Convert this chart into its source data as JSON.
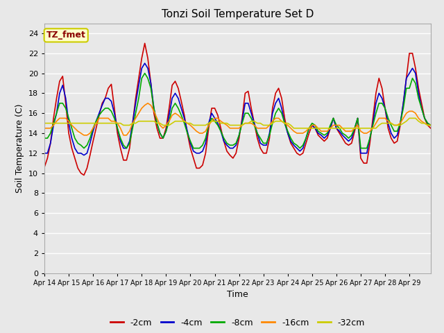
{
  "title": "Tonzi Soil Temperature Set D",
  "xlabel": "Time",
  "ylabel": "Soil Temperature (C)",
  "annotation_text": "TZ_fmet",
  "annotation_color": "#8B0000",
  "annotation_bg": "#FFFFCC",
  "annotation_border": "#CCCC00",
  "ylim": [
    0,
    25
  ],
  "yticks": [
    0,
    2,
    4,
    6,
    8,
    10,
    12,
    14,
    16,
    18,
    20,
    22,
    24
  ],
  "background_color": "#E8E8E8",
  "plot_bg_color": "#E8E8E8",
  "grid_color": "#FFFFFF",
  "series_labels": [
    "-2cm",
    "-4cm",
    "-8cm",
    "-16cm",
    "-32cm"
  ],
  "series_colors": [
    "#CC0000",
    "#0000CC",
    "#00AA00",
    "#FF8800",
    "#CCCC00"
  ],
  "line_width": 1.2,
  "x_tick_labels": [
    "Apr 14",
    "Apr 15",
    "Apr 16",
    "Apr 17",
    "Apr 18",
    "Apr 19",
    "Apr 20",
    "Apr 21",
    "Apr 22",
    "Apr 23",
    "Apr 24",
    "Apr 25",
    "Apr 26",
    "Apr 27",
    "Apr 28",
    "Apr 29"
  ],
  "n_points_per_day": 8,
  "series_data": {
    "-2cm": [
      10.6,
      11.5,
      13.0,
      15.5,
      17.5,
      19.2,
      19.7,
      17.0,
      14.0,
      12.5,
      11.5,
      10.5,
      10.0,
      9.8,
      10.5,
      11.8,
      13.2,
      14.5,
      15.8,
      17.0,
      17.5,
      18.5,
      18.9,
      16.5,
      14.0,
      12.5,
      11.3,
      11.3,
      12.5,
      15.0,
      17.5,
      19.5,
      21.5,
      23.0,
      21.5,
      19.0,
      16.0,
      14.5,
      13.5,
      13.5,
      14.5,
      16.5,
      18.8,
      19.2,
      18.5,
      17.2,
      15.8,
      14.0,
      12.5,
      11.5,
      10.5,
      10.5,
      10.8,
      12.0,
      14.5,
      16.5,
      16.5,
      15.8,
      14.5,
      13.2,
      12.2,
      11.8,
      11.5,
      12.0,
      13.5,
      15.5,
      18.0,
      18.2,
      16.5,
      15.0,
      13.5,
      12.5,
      12.0,
      12.0,
      13.5,
      16.5,
      18.0,
      18.5,
      17.5,
      15.5,
      14.0,
      13.0,
      12.5,
      12.0,
      11.8,
      12.0,
      13.0,
      14.0,
      14.8,
      14.5,
      13.8,
      13.5,
      13.2,
      13.5,
      14.5,
      15.5,
      14.5,
      14.0,
      13.5,
      13.0,
      12.8,
      13.0,
      14.2,
      15.5,
      11.5,
      11.0,
      11.0,
      13.0,
      15.5,
      18.0,
      19.5,
      18.5,
      16.5,
      14.5,
      13.5,
      13.0,
      13.2,
      14.8,
      17.0,
      19.5,
      22.0,
      22.0,
      20.5,
      18.5,
      17.0,
      15.5,
      14.8,
      14.5
    ],
    "-4cm": [
      12.0,
      12.0,
      13.0,
      14.8,
      16.0,
      18.0,
      18.8,
      17.5,
      15.0,
      13.5,
      12.5,
      12.0,
      12.0,
      11.8,
      12.0,
      13.0,
      14.2,
      15.2,
      16.0,
      16.8,
      17.5,
      17.5,
      17.2,
      16.0,
      14.5,
      13.2,
      12.5,
      12.5,
      13.2,
      15.0,
      17.0,
      18.8,
      20.5,
      21.0,
      20.5,
      19.0,
      16.5,
      15.0,
      14.0,
      13.5,
      14.2,
      15.8,
      17.5,
      18.0,
      17.5,
      16.5,
      15.5,
      14.2,
      13.0,
      12.2,
      12.0,
      12.0,
      12.2,
      13.0,
      15.0,
      16.0,
      15.5,
      15.0,
      14.2,
      13.2,
      12.8,
      12.5,
      12.5,
      12.8,
      13.8,
      15.2,
      17.0,
      17.0,
      16.0,
      15.0,
      14.0,
      13.0,
      12.8,
      12.8,
      14.0,
      16.0,
      17.0,
      17.5,
      16.5,
      15.0,
      14.0,
      13.2,
      12.8,
      12.5,
      12.2,
      12.5,
      13.5,
      14.5,
      14.8,
      14.5,
      14.0,
      13.8,
      13.5,
      13.8,
      14.5,
      15.5,
      14.5,
      14.2,
      13.8,
      13.5,
      13.2,
      13.5,
      14.5,
      15.5,
      12.0,
      12.0,
      12.0,
      13.5,
      15.0,
      17.0,
      18.0,
      17.5,
      16.5,
      15.0,
      14.0,
      13.5,
      13.8,
      15.0,
      17.0,
      19.5,
      20.0,
      20.5,
      20.0,
      18.0,
      16.5,
      15.5,
      15.0,
      14.8
    ],
    "-8cm": [
      13.5,
      13.5,
      14.0,
      15.0,
      16.0,
      17.0,
      17.0,
      16.5,
      15.5,
      14.5,
      13.5,
      13.0,
      12.8,
      12.5,
      12.8,
      13.5,
      14.5,
      15.2,
      15.8,
      16.2,
      16.5,
      16.5,
      16.2,
      15.5,
      14.5,
      13.5,
      12.8,
      12.5,
      13.0,
      14.5,
      16.0,
      17.5,
      19.5,
      20.0,
      19.5,
      18.5,
      16.5,
      15.0,
      14.0,
      13.5,
      14.2,
      15.2,
      16.5,
      17.0,
      16.5,
      15.8,
      15.0,
      14.0,
      13.2,
      12.5,
      12.5,
      12.5,
      12.8,
      13.5,
      14.8,
      15.5,
      15.2,
      14.8,
      14.2,
      13.5,
      13.0,
      12.8,
      12.8,
      13.0,
      13.8,
      15.0,
      16.0,
      16.0,
      15.5,
      14.8,
      14.0,
      13.5,
      13.0,
      13.0,
      13.8,
      15.0,
      16.0,
      16.5,
      16.0,
      15.0,
      14.2,
      13.5,
      13.0,
      12.8,
      12.5,
      12.8,
      13.5,
      14.5,
      15.0,
      14.8,
      14.2,
      14.0,
      13.8,
      14.0,
      14.8,
      15.5,
      14.8,
      14.5,
      14.0,
      13.8,
      13.5,
      13.8,
      14.5,
      15.5,
      12.5,
      12.5,
      12.5,
      13.5,
      14.8,
      16.0,
      17.0,
      17.0,
      16.5,
      15.5,
      14.8,
      14.2,
      14.2,
      15.0,
      16.5,
      18.5,
      18.5,
      19.5,
      19.0,
      17.5,
      16.5,
      15.5,
      15.0,
      14.8
    ],
    "-16cm": [
      14.5,
      14.5,
      14.5,
      14.8,
      15.2,
      15.5,
      15.5,
      15.5,
      15.2,
      14.8,
      14.5,
      14.2,
      14.0,
      13.8,
      13.8,
      14.0,
      14.5,
      15.0,
      15.5,
      15.5,
      15.5,
      15.5,
      15.2,
      15.2,
      15.0,
      14.5,
      13.8,
      13.8,
      14.2,
      15.0,
      15.5,
      16.0,
      16.5,
      16.8,
      17.0,
      16.8,
      16.2,
      15.5,
      14.8,
      14.5,
      14.8,
      15.2,
      15.8,
      16.0,
      15.8,
      15.5,
      15.2,
      15.0,
      14.8,
      14.5,
      14.2,
      14.0,
      14.0,
      14.2,
      14.8,
      15.2,
      15.5,
      15.5,
      15.2,
      15.0,
      14.8,
      14.5,
      14.5,
      14.5,
      14.5,
      14.8,
      15.0,
      15.0,
      15.0,
      14.8,
      14.5,
      14.5,
      14.5,
      14.5,
      14.8,
      15.2,
      15.5,
      15.5,
      15.2,
      15.0,
      14.8,
      14.5,
      14.2,
      14.0,
      14.0,
      14.0,
      14.2,
      14.5,
      14.8,
      14.8,
      14.5,
      14.2,
      14.2,
      14.2,
      14.5,
      14.8,
      14.8,
      14.8,
      14.5,
      14.2,
      14.2,
      14.2,
      14.5,
      14.8,
      14.2,
      14.0,
      14.0,
      14.2,
      14.5,
      15.0,
      15.5,
      15.5,
      15.5,
      15.2,
      15.0,
      14.8,
      14.8,
      15.0,
      15.5,
      16.0,
      16.2,
      16.2,
      16.0,
      15.5,
      15.2,
      15.0,
      14.8,
      14.8
    ],
    "-32cm": [
      15.0,
      15.0,
      15.0,
      15.0,
      15.0,
      15.0,
      15.0,
      15.0,
      15.0,
      15.0,
      15.0,
      15.0,
      15.0,
      15.0,
      15.0,
      15.0,
      15.0,
      15.0,
      15.0,
      15.0,
      15.0,
      15.0,
      15.0,
      15.0,
      15.0,
      15.0,
      14.8,
      14.8,
      14.8,
      15.0,
      15.0,
      15.2,
      15.2,
      15.2,
      15.2,
      15.2,
      15.2,
      15.0,
      15.0,
      14.8,
      14.8,
      14.8,
      15.0,
      15.2,
      15.2,
      15.2,
      15.2,
      15.0,
      15.0,
      14.8,
      14.8,
      14.8,
      14.8,
      14.8,
      15.0,
      15.2,
      15.2,
      15.2,
      15.0,
      15.0,
      15.0,
      14.8,
      14.8,
      14.8,
      14.8,
      14.8,
      15.0,
      15.0,
      15.2,
      15.2,
      15.0,
      15.0,
      14.8,
      14.8,
      14.8,
      15.0,
      15.2,
      15.2,
      15.2,
      15.0,
      15.0,
      14.8,
      14.5,
      14.5,
      14.5,
      14.5,
      14.5,
      14.5,
      14.5,
      14.5,
      14.5,
      14.5,
      14.5,
      14.5,
      14.5,
      14.5,
      14.5,
      14.5,
      14.5,
      14.5,
      14.5,
      14.5,
      14.5,
      14.5,
      14.5,
      14.5,
      14.5,
      14.5,
      14.5,
      14.5,
      14.8,
      15.0,
      15.0,
      15.0,
      15.0,
      14.8,
      14.8,
      14.8,
      15.0,
      15.2,
      15.5,
      15.5,
      15.5,
      15.2,
      15.0,
      15.0,
      14.8,
      14.8
    ]
  }
}
